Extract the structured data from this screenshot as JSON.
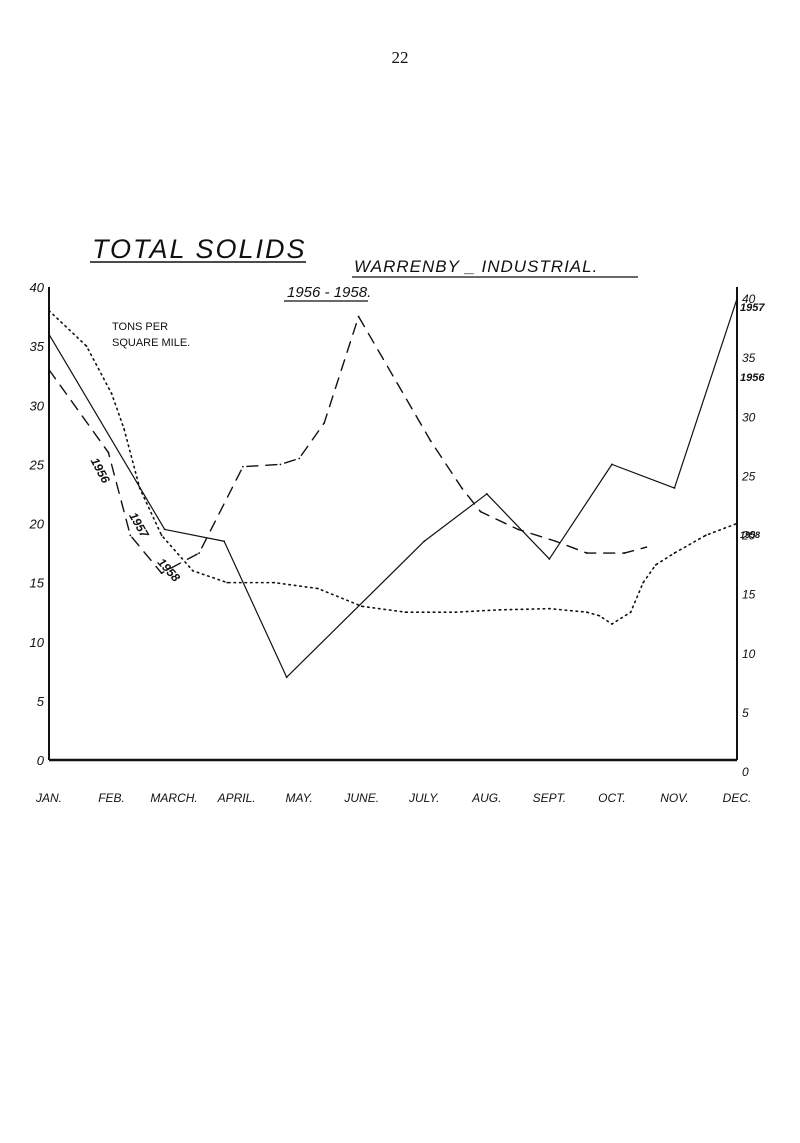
{
  "page_number": "22",
  "chart_data": {
    "type": "line",
    "title": "TOTAL SOLIDS",
    "title_right": "WARRENBY _ INDUSTRIAL.",
    "subtitle": "1956 - 1958.",
    "ylabel": "TONS PER SQUARE MILE.",
    "ylim": [
      0,
      40
    ],
    "yticks": [
      0,
      5,
      10,
      15,
      20,
      25,
      30,
      35,
      40
    ],
    "categories": [
      "JAN.",
      "FEB.",
      "MARCH.",
      "APRIL.",
      "MAY.",
      "JUNE.",
      "JULY.",
      "AUG.",
      "SEPT.",
      "OCT.",
      "NOV.",
      "DEC."
    ],
    "series": [
      {
        "name": "1956",
        "style": "dashed",
        "x": [
          0,
          0.95,
          1.3,
          1.8,
          2.4,
          3.1,
          3.7,
          4.0,
          4.4,
          4.95,
          6.1,
          6.6,
          6.9,
          7.5,
          8.1,
          8.6,
          9.2,
          9.55
        ],
        "values": [
          33,
          26,
          19,
          15.8,
          17.5,
          24.8,
          25,
          25.5,
          28.5,
          37.5,
          27,
          23,
          21,
          19.5,
          18.5,
          17.5,
          17.5,
          18
        ]
      },
      {
        "name": "1957",
        "style": "solid",
        "x": [
          0,
          1.85,
          2.8,
          3.8,
          6.0,
          7.0,
          8.0,
          9.0,
          10.0,
          11.0
        ],
        "values": [
          36,
          19.5,
          18.5,
          7,
          18.5,
          22.5,
          17,
          25,
          23,
          39
        ]
      },
      {
        "name": "1958",
        "style": "dotted",
        "x": [
          0,
          0.6,
          1.0,
          1.2,
          1.45,
          1.8,
          2.3,
          2.85,
          3.6,
          4.3,
          5.0,
          5.7,
          6.5,
          7.2,
          8.0,
          8.6,
          8.8,
          9.0,
          9.3,
          9.5,
          9.7,
          10.0,
          10.5,
          11.0
        ],
        "values": [
          38,
          35,
          31,
          28,
          23,
          19,
          16,
          15,
          15,
          14.5,
          13,
          12.5,
          12.5,
          12.7,
          12.8,
          12.5,
          12.2,
          11.5,
          12.5,
          15,
          16.5,
          17.5,
          19,
          20
        ]
      }
    ],
    "series_labels": [
      {
        "text": "1956",
        "at_series": 0
      },
      {
        "text": "1957",
        "at_series": 1
      },
      {
        "text": "1958",
        "at_series": 2
      }
    ],
    "right_labels": {
      "1957": "1957",
      "1956": "1956",
      "1958": "1958"
    },
    "grid": false,
    "legend": "none"
  }
}
